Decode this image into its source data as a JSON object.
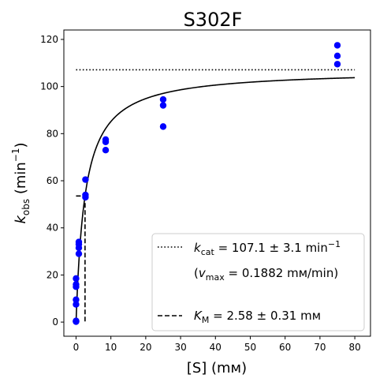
{
  "chart_data": {
    "type": "scatter",
    "title": "S302F",
    "xlabel": "[S] (mм)",
    "ylabel": "k_obs (min⁻¹)",
    "xlim": [
      -3.5,
      84.5
    ],
    "ylim": [
      -6,
      124
    ],
    "x_ticks": [
      0,
      10,
      20,
      30,
      40,
      50,
      60,
      70,
      80
    ],
    "y_ticks": [
      0,
      20,
      40,
      60,
      80,
      100,
      120
    ],
    "grid": false,
    "legend_position": "lower-right",
    "colors": {
      "points": "#0000ff",
      "lines": "#000000"
    },
    "series": [
      {
        "kind": "points",
        "x": [
          0,
          0,
          0,
          0,
          0,
          0,
          0,
          0,
          0.8,
          0.8,
          0.8,
          0.8,
          2.7,
          2.7,
          2.7,
          8.5,
          8.5,
          8.5,
          25,
          25,
          25,
          75,
          75,
          75
        ],
        "y": [
          0.2,
          0.5,
          7.5,
          9.5,
          15,
          16,
          18.5,
          0.3,
          29,
          31.5,
          33,
          34,
          53,
          54,
          60.5,
          73,
          76.5,
          77.5,
          83,
          92,
          94.5,
          109.5,
          113,
          117.5
        ]
      },
      {
        "kind": "fit",
        "equation": "k = kcat*S/(KM+S)",
        "kcat": 107.1,
        "KM": 2.58,
        "x_range": [
          0,
          80
        ]
      },
      {
        "kind": "kcat-line",
        "y": 107.1,
        "x_range": [
          0,
          80
        ]
      },
      {
        "kind": "KM-marker",
        "x": 2.58,
        "y_half": 53.55
      }
    ],
    "legend": {
      "kcat": {
        "sym": "k",
        "sub": "cat",
        "text": " = 107.1 ± 3.1 min",
        "sup": "−1"
      },
      "vmax": {
        "open": "(",
        "sym": "v",
        "sub": "max",
        "text": " = 0.1882 mм/min)"
      },
      "KM": {
        "sym": "K",
        "sub": "M",
        "text": " = 2.58 ± 0.31 mм"
      }
    }
  },
  "axes_text": {
    "ylabel_sym": "k",
    "ylabel_sub": "obs",
    "ylabel_rest": " (min",
    "ylabel_sup": "−1",
    "ylabel_close": ")"
  }
}
